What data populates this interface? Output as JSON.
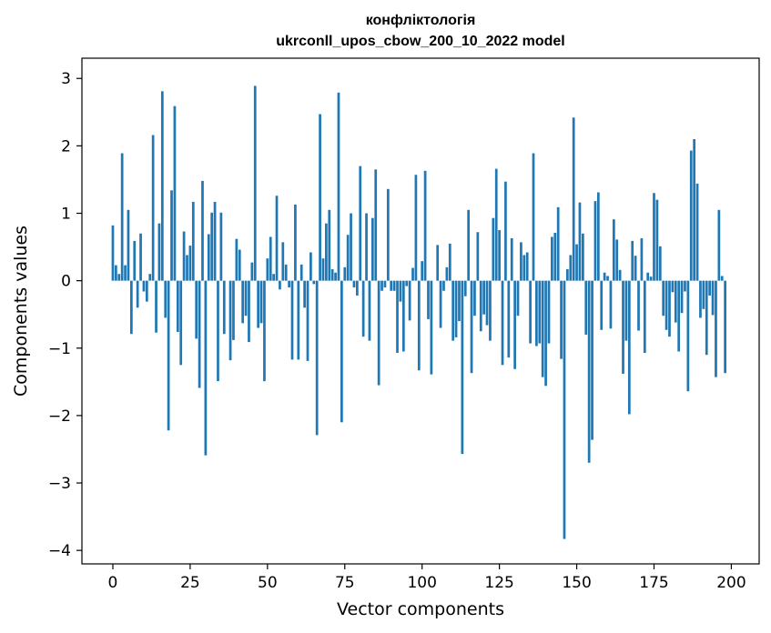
{
  "chart_data": {
    "type": "bar",
    "title_line1": "конфліктологія",
    "title_line2": "ukrconll_upos_cbow_200_10_2022 model",
    "xlabel": "Vector components",
    "ylabel": "Components values",
    "xlim": [
      -10,
      209
    ],
    "ylim": [
      -4.2,
      3.3
    ],
    "xticks": [
      0,
      25,
      50,
      75,
      100,
      125,
      150,
      175,
      200
    ],
    "yticks": [
      3,
      2,
      1,
      0,
      -1,
      -2,
      -3,
      -4
    ],
    "ytick_labels": [
      "3",
      "2",
      "1",
      "0",
      "−1",
      "−2",
      "−3",
      "−4"
    ],
    "bar_color": "#1f77b4",
    "values": [
      0.82,
      0.23,
      0.1,
      1.89,
      0.23,
      1.05,
      -0.79,
      0.59,
      -0.4,
      0.7,
      -0.16,
      -0.31,
      0.1,
      2.16,
      -0.77,
      0.85,
      2.81,
      -0.55,
      -2.22,
      1.34,
      2.59,
      -0.76,
      -1.25,
      0.73,
      0.38,
      0.52,
      1.17,
      -0.86,
      -1.59,
      1.48,
      -2.59,
      0.69,
      1.01,
      1.17,
      -1.49,
      1.01,
      -0.79,
      0.0,
      -1.18,
      -0.88,
      0.62,
      0.46,
      -0.63,
      -0.52,
      -0.91,
      0.27,
      2.89,
      -0.7,
      -0.63,
      -1.49,
      0.33,
      0.65,
      0.1,
      1.26,
      -0.13,
      0.57,
      0.24,
      -0.1,
      -1.17,
      1.13,
      -1.17,
      0.24,
      -0.4,
      -1.19,
      0.42,
      -0.05,
      -2.29,
      2.47,
      0.33,
      0.85,
      1.05,
      0.17,
      0.12,
      2.79,
      -2.1,
      0.2,
      0.68,
      1.0,
      -0.1,
      -0.22,
      1.7,
      -0.83,
      1.0,
      -0.89,
      0.93,
      1.65,
      -1.55,
      -0.15,
      -0.1,
      1.36,
      -0.15,
      -0.15,
      -1.07,
      -0.31,
      -1.05,
      -0.08,
      -0.59,
      0.19,
      1.57,
      -1.33,
      0.29,
      1.63,
      -0.57,
      -1.39,
      0.0,
      0.53,
      -0.7,
      -0.15,
      0.2,
      0.55,
      -0.89,
      -0.84,
      -0.6,
      -2.57,
      -0.23,
      1.05,
      -1.37,
      -0.52,
      0.72,
      -0.75,
      -0.5,
      -0.66,
      -0.89,
      0.93,
      1.66,
      0.75,
      -1.25,
      1.47,
      -1.14,
      0.63,
      -1.31,
      -0.52,
      0.57,
      0.38,
      0.42,
      -0.93,
      1.89,
      -0.97,
      -0.93,
      -1.43,
      -1.56,
      -0.93,
      0.65,
      0.71,
      1.09,
      -1.16,
      -3.83,
      0.17,
      0.38,
      2.42,
      0.54,
      1.16,
      0.7,
      -0.8,
      -2.7,
      -2.36,
      1.18,
      1.31,
      -0.73,
      0.12,
      0.07,
      -0.71,
      0.91,
      0.61,
      0.16,
      -1.38,
      -0.89,
      -1.98,
      0.59,
      0.37,
      -0.74,
      0.63,
      -1.07,
      0.12,
      0.06,
      1.3,
      1.2,
      0.51,
      -0.52,
      -0.73,
      -0.83,
      -0.17,
      -0.62,
      -1.05,
      -0.48,
      -0.16,
      -1.64,
      1.93,
      2.1,
      1.44,
      -0.55,
      -0.42,
      -1.1,
      -0.22,
      -0.51,
      -1.43,
      1.05,
      0.07,
      -1.37
    ]
  }
}
